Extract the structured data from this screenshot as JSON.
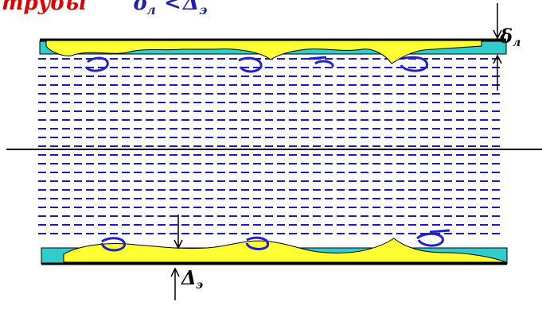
{
  "title": {
    "word": "трубы",
    "formula": "δ",
    "formula_sub": "л",
    "formula_rel": "<",
    "formula_rhs": "Δ",
    "formula_rhs_sub": "э"
  },
  "labels": {
    "top_thickness": "δ",
    "top_thickness_sub": "л",
    "bottom_roughness": "Δ",
    "bottom_roughness_sub": "э"
  },
  "colors": {
    "deposit": "#ffff33",
    "wall": "#33cccc",
    "flow_lines": "#1a1acc",
    "pipe_edge": "#000000",
    "title_red": "#e00000",
    "swirl": "#2222cc"
  },
  "icons": {
    "top_arrow": "arrow-down-icon",
    "bottom_arrow": "arrow-up-icon",
    "vortex": "vortex-swirl-icon"
  }
}
